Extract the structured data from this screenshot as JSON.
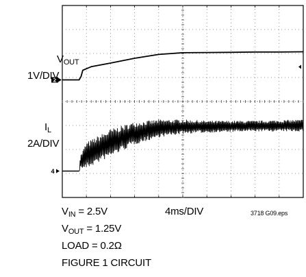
{
  "chart_data": {
    "type": "line",
    "grid": true,
    "divisions": {
      "x": 10,
      "y": 8
    },
    "x_scale_label": "4ms/DIV",
    "figure_id": "3718 G09.eps",
    "channels": [
      {
        "name_main": "V",
        "name_sub": "OUT",
        "scale_label": "1V/DIV",
        "marker": "2",
        "baseline_div": 4.9,
        "trace_div": [
          [
            0,
            4.9
          ],
          [
            0.7,
            4.9
          ],
          [
            0.78,
            5.05
          ],
          [
            0.85,
            5.3
          ],
          [
            1.2,
            5.45
          ],
          [
            2,
            5.6
          ],
          [
            3,
            5.8
          ],
          [
            4,
            5.96
          ],
          [
            5,
            6.03
          ],
          [
            6,
            6.04
          ],
          [
            7,
            6.05
          ],
          [
            8,
            6.06
          ],
          [
            9,
            6.06
          ],
          [
            10,
            6.07
          ]
        ]
      },
      {
        "name_main": "I",
        "name_sub": "L",
        "scale_label": "2A/DIV",
        "marker": "4",
        "baseline_div": 1.1,
        "envelope_div": [
          {
            "x": 0,
            "lo": 1.1,
            "hi": 1.1
          },
          {
            "x": 0.7,
            "lo": 1.1,
            "hi": 1.1
          },
          {
            "x": 0.75,
            "lo": 1.2,
            "hi": 1.75
          },
          {
            "x": 1.0,
            "lo": 1.2,
            "hi": 2.3
          },
          {
            "x": 2.0,
            "lo": 1.7,
            "hi": 2.85
          },
          {
            "x": 3.0,
            "lo": 2.2,
            "hi": 3.15
          },
          {
            "x": 4.0,
            "lo": 2.5,
            "hi": 3.25
          },
          {
            "x": 5.0,
            "lo": 2.65,
            "hi": 3.25
          },
          {
            "x": 6.0,
            "lo": 2.7,
            "hi": 3.2
          },
          {
            "x": 8.0,
            "lo": 2.75,
            "hi": 3.2
          },
          {
            "x": 10.0,
            "lo": 2.75,
            "hi": 3.25
          }
        ]
      }
    ],
    "conditions": [
      {
        "main": "V",
        "sub": "IN",
        "rest": " = 2.5V"
      },
      {
        "main": "V",
        "sub": "OUT",
        "rest": " = 1.25V"
      },
      {
        "main": "LOAD = 0.2",
        "sub": "",
        "rest": "Ω"
      },
      {
        "main": "FIGURE 1 CIRCUIT",
        "sub": "",
        "rest": ""
      }
    ]
  }
}
